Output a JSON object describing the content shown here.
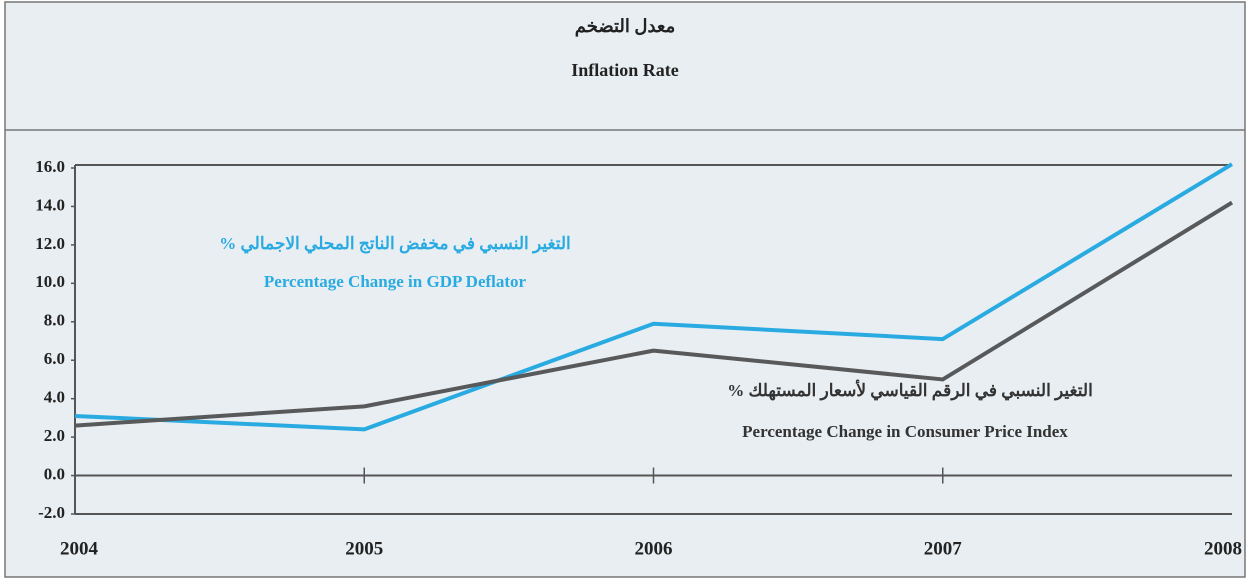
{
  "chart_data": {
    "type": "line",
    "title_ar": "معدل التضخم",
    "title": "Inflation Rate",
    "categories": [
      "2004",
      "2005",
      "2006",
      "2007",
      "2008"
    ],
    "series": [
      {
        "name": "Percentage Change in GDP Deflator",
        "name_ar": "التغير النسبي في مخفض الناتج المحلي الاجمالي %",
        "color": "#29abe2",
        "values": [
          3.1,
          2.4,
          7.9,
          7.1,
          16.2
        ]
      },
      {
        "name": "Percentage Change in Consumer Price Index",
        "name_ar": "التغير النسبي في الرقم القياسي لأسعار المستهلك %",
        "color": "#58595b",
        "values": [
          2.6,
          3.6,
          6.5,
          5.0,
          14.2
        ]
      }
    ],
    "ylim": [
      -2,
      16
    ],
    "yticks": [
      {
        "value": -2,
        "label": "-2.0"
      },
      {
        "value": 0,
        "label": "0.0"
      },
      {
        "value": 2,
        "label": "2.0"
      },
      {
        "value": 4,
        "label": "4.0"
      },
      {
        "value": 6,
        "label": "6.0"
      },
      {
        "value": 8,
        "label": "8.0"
      },
      {
        "value": 10,
        "label": "10.0"
      },
      {
        "value": 12,
        "label": "12.0"
      },
      {
        "value": 14,
        "label": "14.0"
      },
      {
        "value": 16,
        "label": "16.0"
      }
    ]
  }
}
